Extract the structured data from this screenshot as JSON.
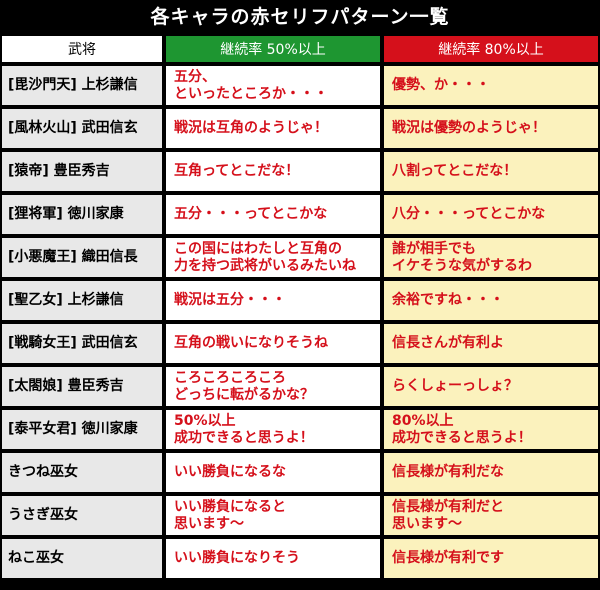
{
  "title": "各キャラの赤セリフパターン一覧",
  "headers": {
    "name": "武将",
    "rate50": "継続率 50%以上",
    "rate80": "継続率 80%以上"
  },
  "rows": [
    {
      "name": "[毘沙門天] 上杉謙信",
      "r50": "五分、\nといったところか・・・",
      "r80": "優勢、か・・・"
    },
    {
      "name": "[風林火山] 武田信玄",
      "r50": "戦況は互角のようじゃ！",
      "r80": "戦況は優勢のようじゃ！"
    },
    {
      "name": "[猿帝] 豊臣秀吉",
      "r50": "互角ってとこだな！",
      "r80": "八割ってとこだな！"
    },
    {
      "name": "[狸将軍] 徳川家康",
      "r50": "五分・・・ってとこかな",
      "r80": "八分・・・ってとこかな"
    },
    {
      "name": "[小悪魔王] 織田信長",
      "r50": "この国にはわたしと互角の\n力を持つ武将がいるみたいね",
      "r80": "誰が相手でも\nイケそうな気がするわ"
    },
    {
      "name": "[聖乙女] 上杉謙信",
      "r50": "戦況は五分・・・",
      "r80": "余裕ですね・・・"
    },
    {
      "name": "[戦騎女王] 武田信玄",
      "r50": "互角の戦いになりそうね",
      "r80": "信長さんが有利よ"
    },
    {
      "name": "[太閤娘] 豊臣秀吉",
      "r50": "ころころころころ\nどっちに転がるかな？",
      "r80": "らくしょーっしょ？"
    },
    {
      "name": "[泰平女君] 徳川家康",
      "r50": "50%以上\n成功できると思うよ！",
      "r80": "80%以上\n成功できると思うよ！"
    },
    {
      "name": "きつね巫女",
      "r50": "いい勝負になるな",
      "r80": "信長様が有利だな"
    },
    {
      "name": "うさぎ巫女",
      "r50": "いい勝負になると\n思います～",
      "r80": "信長様が有利だと\n思います～"
    },
    {
      "name": "ねこ巫女",
      "r50": "いい勝負になりそう",
      "r80": "信長様が有利です"
    }
  ]
}
